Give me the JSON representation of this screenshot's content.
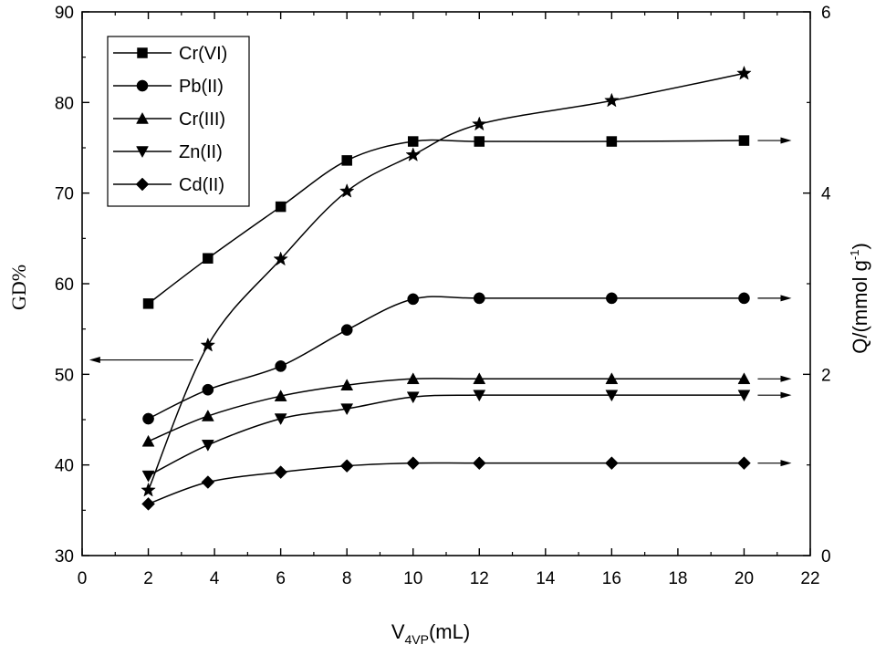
{
  "chart_data": {
    "type": "line",
    "title": "",
    "xlabel": {
      "main": "V",
      "sub": "4VP",
      "suffix": "(mL)"
    },
    "ylabel_left": "GD%",
    "ylabel_right": {
      "main": "Q/(mmol g",
      "sup": "-1",
      "suffix": ")"
    },
    "xlim": [
      0,
      22
    ],
    "ylim_left": [
      30,
      90
    ],
    "ylim_right": [
      0,
      6
    ],
    "x_ticks": [
      0,
      2,
      4,
      6,
      8,
      10,
      12,
      14,
      16,
      18,
      20,
      22
    ],
    "y_left_ticks": [
      30,
      40,
      50,
      60,
      70,
      80,
      90
    ],
    "y_right_ticks": [
      0,
      2,
      4,
      6
    ],
    "grid": false,
    "legend_position": "top-left",
    "series": [
      {
        "name": "Cr(VI)",
        "marker": "square",
        "axis": "right",
        "x": [
          2,
          3.8,
          6,
          8,
          10,
          12,
          16,
          20
        ],
        "values": [
          2.78,
          3.28,
          3.85,
          4.36,
          4.57,
          4.57,
          4.57,
          4.58
        ]
      },
      {
        "name": "Pb(II)",
        "marker": "circle",
        "axis": "right",
        "x": [
          2,
          3.8,
          6,
          8,
          10,
          12,
          16,
          20
        ],
        "values": [
          1.51,
          1.83,
          2.09,
          2.49,
          2.83,
          2.84,
          2.84,
          2.84
        ]
      },
      {
        "name": "Cr(III)",
        "marker": "triangle-up",
        "axis": "right",
        "x": [
          2,
          3.8,
          6,
          8,
          10,
          12,
          16,
          20
        ],
        "values": [
          1.26,
          1.54,
          1.76,
          1.88,
          1.95,
          1.95,
          1.95,
          1.95
        ]
      },
      {
        "name": "Zn(II)",
        "marker": "triangle-down",
        "axis": "right",
        "x": [
          2,
          3.8,
          6,
          8,
          10,
          12,
          16,
          20
        ],
        "values": [
          0.88,
          1.22,
          1.51,
          1.62,
          1.75,
          1.77,
          1.77,
          1.77
        ]
      },
      {
        "name": "Cd(II)",
        "marker": "diamond",
        "axis": "right",
        "x": [
          2,
          3.8,
          6,
          8,
          10,
          12,
          16,
          20
        ],
        "values": [
          0.57,
          0.81,
          0.92,
          0.99,
          1.02,
          1.02,
          1.02,
          1.02
        ]
      },
      {
        "marker": "star",
        "axis": "left",
        "x": [
          2,
          3.8,
          6,
          8,
          10,
          12,
          16,
          20
        ],
        "values": [
          37.2,
          53.2,
          62.7,
          70.2,
          74.2,
          77.6,
          80.2,
          83.2
        ]
      }
    ]
  }
}
